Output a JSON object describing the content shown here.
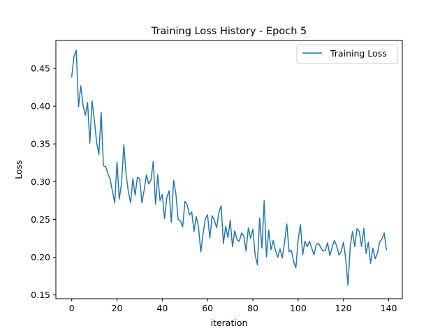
{
  "chart_data": {
    "type": "line",
    "title": "Training Loss History - Epoch 5",
    "xlabel": "iteration",
    "ylabel": "Loss",
    "xlim": [
      -7,
      146
    ],
    "ylim": [
      0.145,
      0.487
    ],
    "xticks": [
      0,
      20,
      40,
      60,
      80,
      100,
      120,
      140
    ],
    "yticks": [
      0.15,
      0.2,
      0.25,
      0.3,
      0.35,
      0.4,
      0.45
    ],
    "grid": false,
    "legend": "top-right",
    "series": [
      {
        "name": "Training Loss",
        "color": "#1f77b4",
        "x": [
          0,
          1,
          2,
          3,
          4,
          5,
          6,
          7,
          8,
          9,
          10,
          11,
          12,
          13,
          14,
          15,
          16,
          17,
          18,
          19,
          20,
          21,
          22,
          23,
          24,
          25,
          26,
          27,
          28,
          29,
          30,
          31,
          32,
          33,
          34,
          35,
          36,
          37,
          38,
          39,
          40,
          41,
          42,
          43,
          44,
          45,
          46,
          47,
          48,
          49,
          50,
          51,
          52,
          53,
          54,
          55,
          56,
          57,
          58,
          59,
          60,
          61,
          62,
          63,
          64,
          65,
          66,
          67,
          68,
          69,
          70,
          71,
          72,
          73,
          74,
          75,
          76,
          77,
          78,
          79,
          80,
          81,
          82,
          83,
          84,
          85,
          86,
          87,
          88,
          89,
          90,
          91,
          92,
          93,
          94,
          95,
          96,
          97,
          98,
          99,
          100,
          101,
          102,
          103,
          104,
          105,
          106,
          107,
          108,
          109,
          110,
          111,
          112,
          113,
          114,
          115,
          116,
          117,
          118,
          119,
          120,
          121,
          122,
          123,
          124,
          125,
          126,
          127,
          128,
          129,
          130,
          131,
          132,
          133,
          134,
          135,
          136,
          137,
          138,
          139
        ],
        "y": [
          0.439,
          0.466,
          0.474,
          0.399,
          0.427,
          0.401,
          0.388,
          0.405,
          0.351,
          0.407,
          0.381,
          0.352,
          0.336,
          0.392,
          0.321,
          0.32,
          0.31,
          0.303,
          0.287,
          0.272,
          0.326,
          0.277,
          0.298,
          0.349,
          0.31,
          0.287,
          0.272,
          0.304,
          0.282,
          0.306,
          0.304,
          0.272,
          0.289,
          0.309,
          0.297,
          0.302,
          0.327,
          0.27,
          0.309,
          0.275,
          0.283,
          0.251,
          0.279,
          0.288,
          0.246,
          0.302,
          0.284,
          0.25,
          0.248,
          0.24,
          0.274,
          0.269,
          0.256,
          0.26,
          0.234,
          0.254,
          0.24,
          0.207,
          0.231,
          0.251,
          0.256,
          0.225,
          0.255,
          0.249,
          0.239,
          0.259,
          0.268,
          0.218,
          0.241,
          0.226,
          0.249,
          0.214,
          0.235,
          0.223,
          0.221,
          0.232,
          0.228,
          0.208,
          0.239,
          0.225,
          0.237,
          0.203,
          0.19,
          0.252,
          0.212,
          0.275,
          0.2,
          0.236,
          0.21,
          0.222,
          0.209,
          0.2,
          0.211,
          0.199,
          0.22,
          0.244,
          0.207,
          0.209,
          0.194,
          0.186,
          0.223,
          0.243,
          0.203,
          0.221,
          0.214,
          0.221,
          0.212,
          0.203,
          0.217,
          0.218,
          0.213,
          0.208,
          0.209,
          0.219,
          0.202,
          0.213,
          0.222,
          0.215,
          0.203,
          0.207,
          0.22,
          0.198,
          0.163,
          0.214,
          0.234,
          0.214,
          0.238,
          0.234,
          0.214,
          0.238,
          0.205,
          0.22,
          0.192,
          0.212,
          0.198,
          0.205,
          0.22,
          0.224,
          0.232,
          0.21
        ]
      }
    ]
  }
}
